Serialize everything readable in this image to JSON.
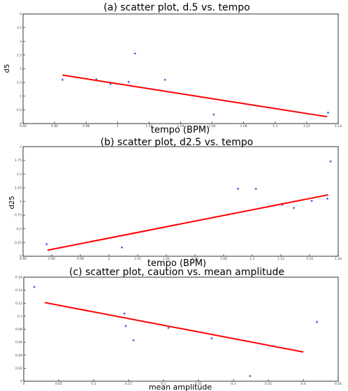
{
  "chart_data": [
    {
      "type": "scatter",
      "title": "(a)  scatter plot, d.5 vs. tempo",
      "xlabel": "tempo (BPM)",
      "ylabel": "d5",
      "xlim": [
        0.94,
        1.14
      ],
      "ylim": [
        0,
        4
      ],
      "xticks": [
        0.94,
        0.96,
        0.98,
        1.0,
        1.02,
        1.04,
        1.06,
        1.08,
        1.1,
        1.12,
        1.14
      ],
      "yticks": [
        0,
        0.5,
        1,
        1.5,
        2,
        2.5,
        3,
        3.5,
        4
      ],
      "x": [
        0.965,
        0.9865,
        0.9955,
        1.007,
        1.011,
        1.03,
        1.061,
        1.1335
      ],
      "y": [
        1.6,
        1.61,
        1.45,
        1.52,
        2.56,
        1.6,
        0.33,
        0.4
      ],
      "fit_line": {
        "x": [
          0.965,
          1.133
        ],
        "y": [
          1.77,
          0.25
        ]
      },
      "marker_color": "#3b3bd8",
      "line_color": "#ff0000"
    },
    {
      "type": "scatter",
      "title": "(b) scatter plot, d2.5 vs. tempo",
      "xlabel": "tempo (BPM)",
      "ylabel": "d25",
      "xlim": [
        0.94,
        1.16
      ],
      "ylim": [
        0,
        2
      ],
      "xticks": [
        0.94,
        0.96,
        0.98,
        1.0,
        1.02,
        1.04,
        1.06,
        1.08,
        1.1,
        1.12,
        1.14,
        1.16
      ],
      "yticks": [
        0,
        0.25,
        0.5,
        0.75,
        1,
        1.25,
        1.5,
        1.75,
        2
      ],
      "x": [
        0.9565,
        1.009,
        1.09,
        1.1025,
        1.121,
        1.129,
        1.1415,
        1.1525,
        1.1547
      ],
      "y": [
        0.22,
        0.16,
        1.23,
        1.23,
        0.94,
        0.88,
        1.01,
        1.05,
        1.73
      ],
      "fit_line": {
        "x": [
          0.957,
          1.153
        ],
        "y": [
          0.11,
          1.12
        ]
      },
      "marker_color": "#3b3bd8",
      "line_color": "#ff0000"
    },
    {
      "type": "scatter",
      "title": "(c) scatter plot, caution vs. mean amplitude",
      "xlabel": "mean amplitude",
      "ylabel": "",
      "xlim": [
        0,
        0.45
      ],
      "ylim": [
        0,
        0.16
      ],
      "xticks": [
        0,
        0.05,
        0.1,
        0.15,
        0.2,
        0.25,
        0.3,
        0.35,
        0.4,
        0.45
      ],
      "yticks": [
        0,
        0.02,
        0.04,
        0.06,
        0.08,
        0.1,
        0.12,
        0.14,
        0.16
      ],
      "x": [
        0.015,
        0.144,
        0.146,
        0.157,
        0.207,
        0.269,
        0.324,
        0.4195
      ],
      "y": [
        0.145,
        0.104,
        0.085,
        0.063,
        0.082,
        0.066,
        0.008,
        0.091
      ],
      "fit_line": {
        "x": [
          0.03,
          0.4
        ],
        "y": [
          0.121,
          0.045
        ]
      },
      "marker_color": "#3b3bd8",
      "line_color": "#ff0000"
    }
  ]
}
